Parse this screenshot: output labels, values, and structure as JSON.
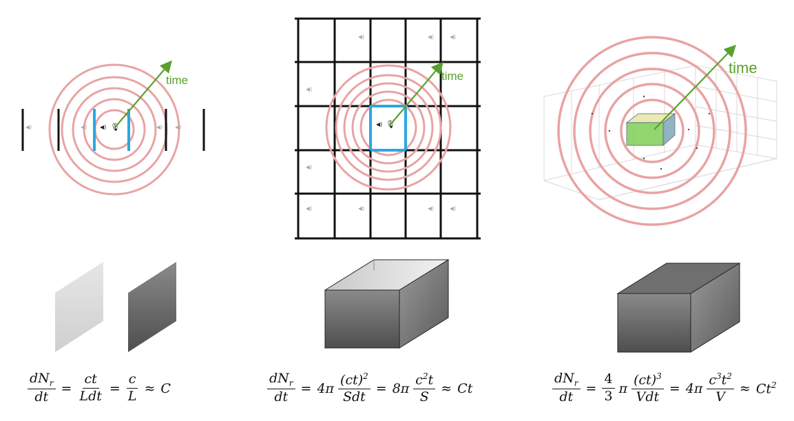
{
  "labels": {
    "time_label": "time"
  },
  "colors": {
    "ring": "#e8a3a3",
    "arrow": "#5aa02c",
    "highlight": "#29a8e0",
    "grid": "#111111",
    "box_dark": "#7a7a7a",
    "box_light": "#d8d8d8"
  },
  "equations": {
    "one_d": {
      "lhs_num": "dN",
      "lhs_sub": "r",
      "lhs_den": "dt",
      "eq": "=",
      "f1_num": "ct",
      "f1_den": "Ldt",
      "f2_num": "c",
      "f2_den": "L",
      "approx": "≈",
      "result": "C"
    },
    "two_d": {
      "lhs_num": "dN",
      "lhs_sub": "r",
      "lhs_den": "dt",
      "eq": "=",
      "coef1": "4π",
      "f1_num": "(ct)",
      "f1_sup": "2",
      "f1_den": "Sdt",
      "coef2": "8π",
      "f2_num": "c",
      "f2_sup": "2",
      "f2_num_tail": "t",
      "f2_den": "S",
      "approx": "≈",
      "result": "Ct"
    },
    "three_d": {
      "lhs_num": "dN",
      "lhs_sub": "r",
      "lhs_den": "dt",
      "eq": "=",
      "coef_num": "4",
      "coef_den": "3",
      "pi": "π",
      "f1_num": "(ct)",
      "f1_sup": "3",
      "f1_den": "Vdt",
      "coef2": "4π",
      "f2_num": "c",
      "f2_sup": "3",
      "f2_num_mid": "t",
      "f2_sup2": "2",
      "f2_den": "V",
      "approx": "≈",
      "result": "Ct",
      "result_sup": "2"
    }
  }
}
